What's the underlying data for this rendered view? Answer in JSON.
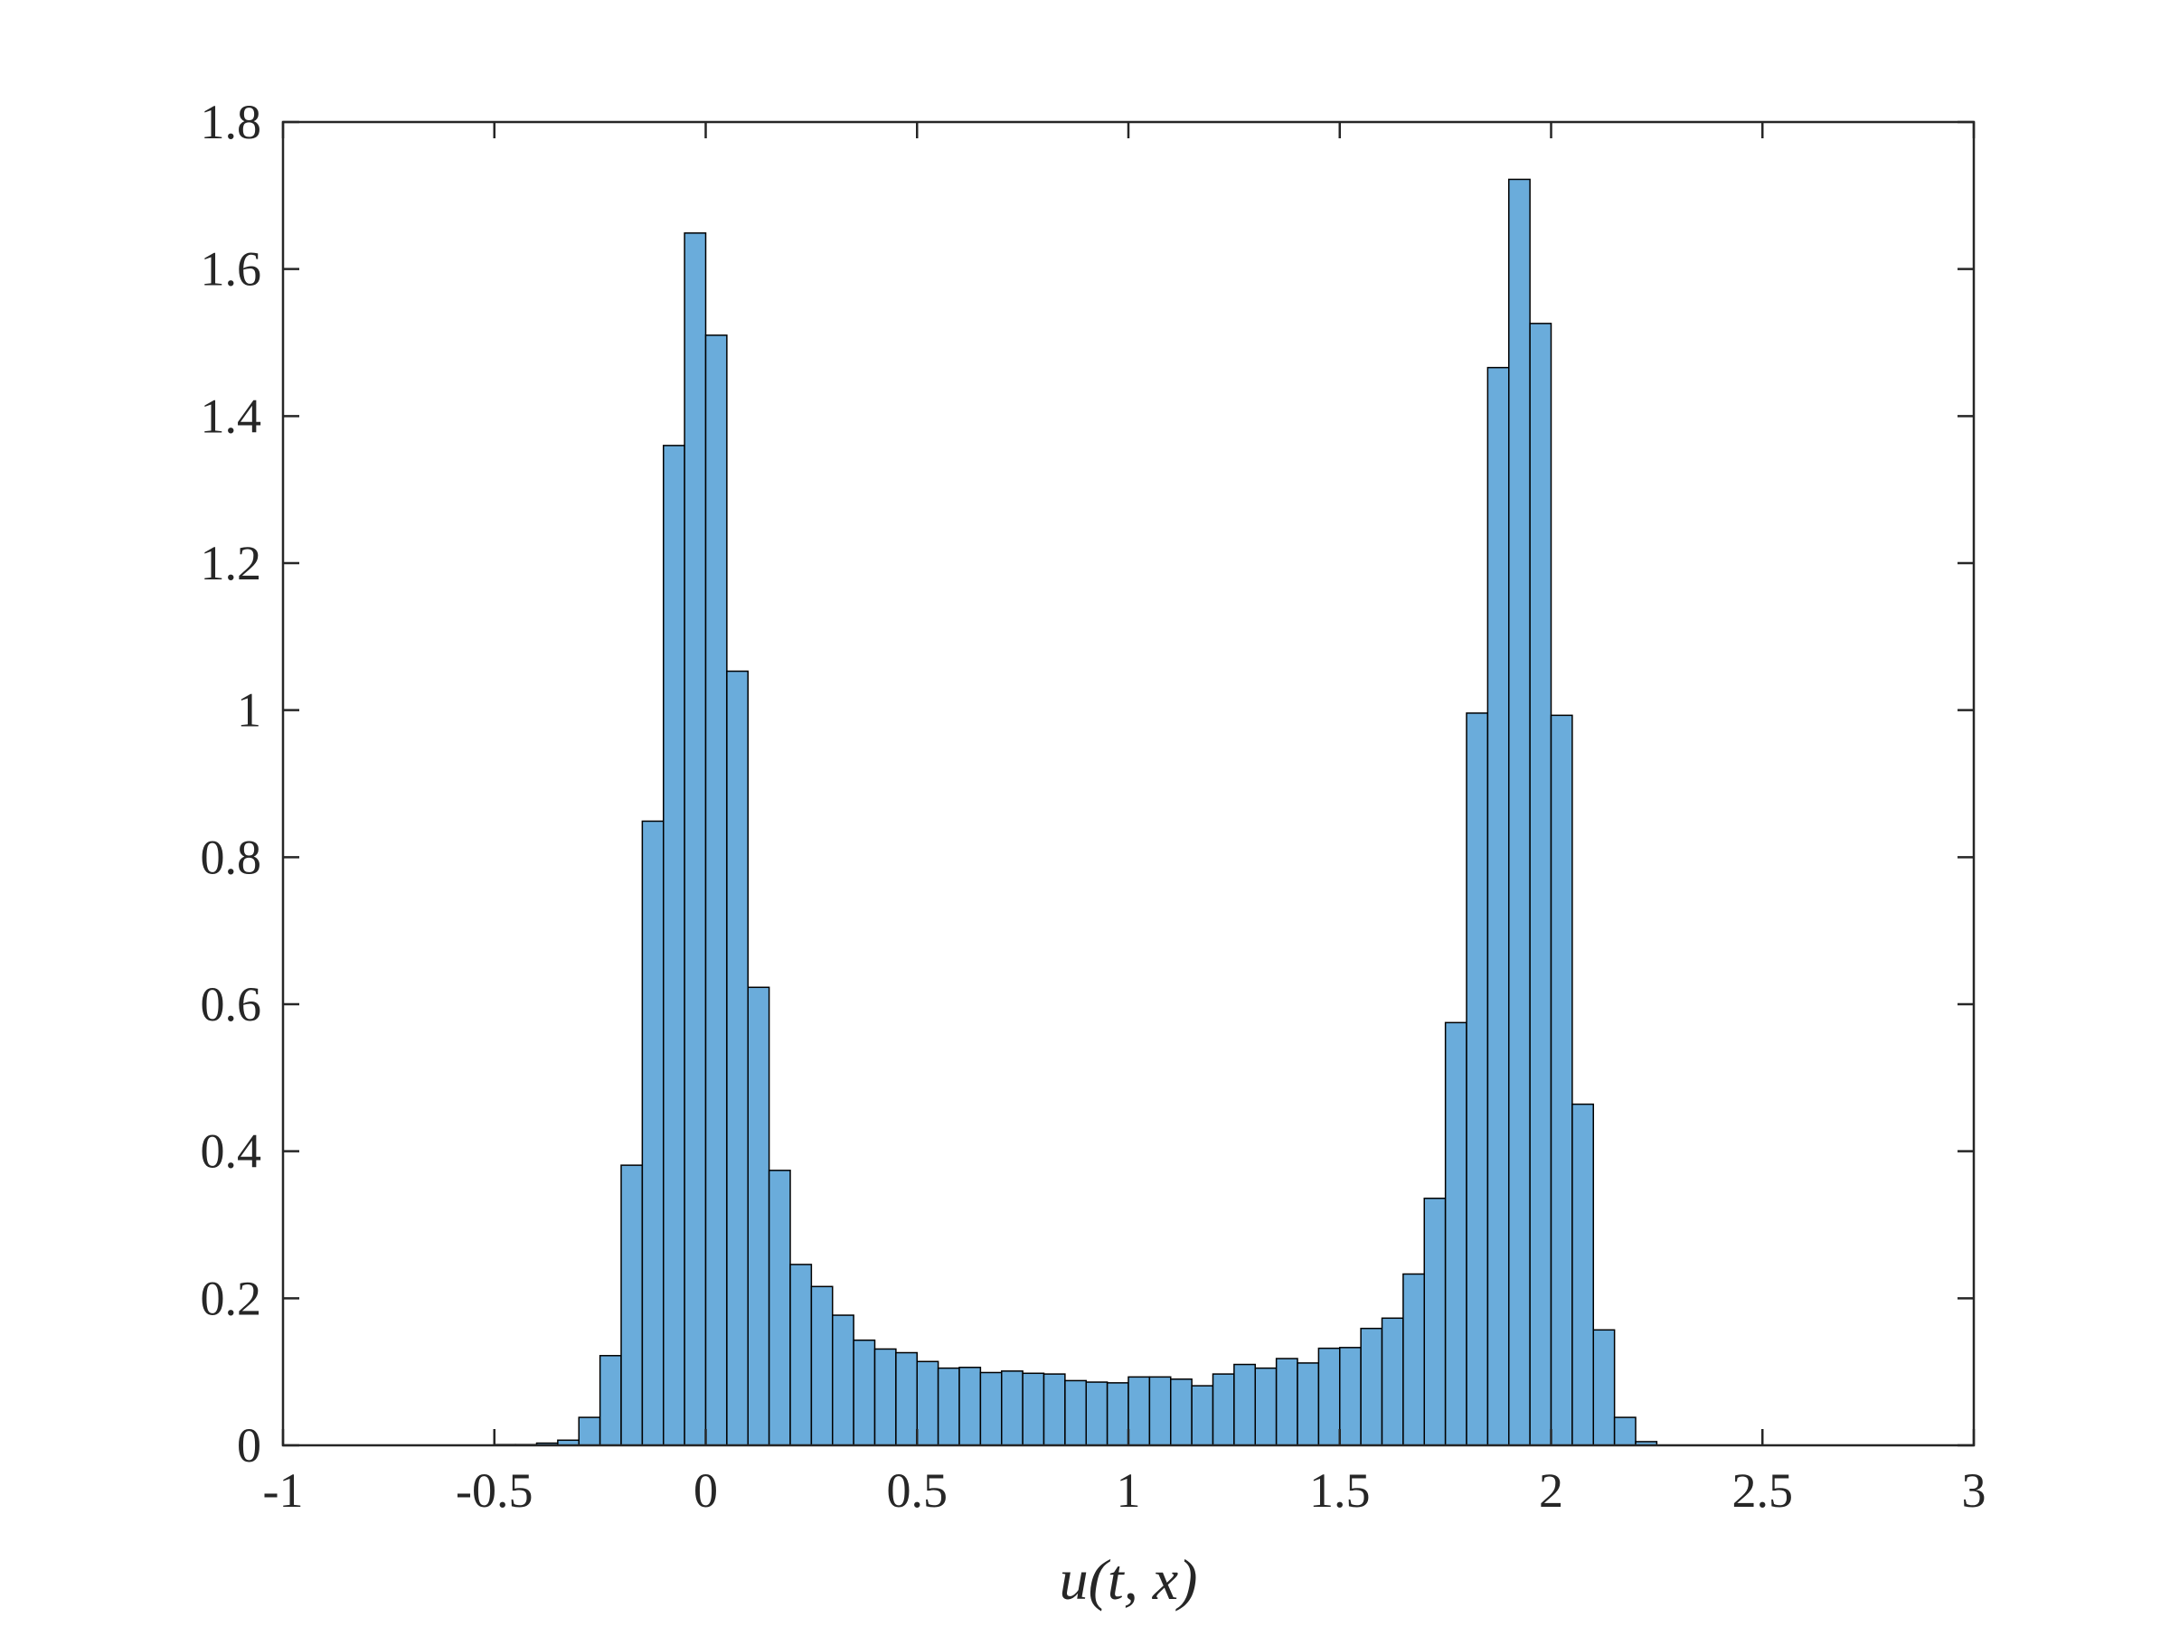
{
  "chart_data": {
    "type": "bar",
    "title": "",
    "xlabel": "u(t, x)",
    "ylabel": "",
    "xlim": [
      -1,
      3
    ],
    "ylim": [
      0,
      1.8
    ],
    "xticks": [
      -1,
      -0.5,
      0,
      0.5,
      1,
      1.5,
      2,
      2.5,
      3
    ],
    "xtick_labels": [
      "-1",
      "-0.5",
      "0",
      "0.5",
      "1",
      "1.5",
      "2",
      "2.5",
      "3"
    ],
    "yticks": [
      0,
      0.2,
      0.4,
      0.6,
      0.8,
      1,
      1.2,
      1.4,
      1.6,
      1.8
    ],
    "ytick_labels": [
      "0",
      "0.2",
      "0.4",
      "0.6",
      "0.8",
      "1",
      "1.2",
      "1.4",
      "1.6",
      "1.8"
    ],
    "grid": false,
    "legend": "none",
    "bar_color": "#6aacdb",
    "edge_color": "#000000",
    "bin_width": 0.05,
    "bin_edges_start": -0.5,
    "values": [
      0.001,
      0.001,
      0.003,
      0.007,
      0.038,
      0.122,
      0.381,
      0.849,
      1.36,
      1.649,
      1.51,
      1.053,
      0.623,
      0.374,
      0.246,
      0.216,
      0.177,
      0.143,
      0.131,
      0.126,
      0.114,
      0.105,
      0.106,
      0.099,
      0.101,
      0.098,
      0.097,
      0.088,
      0.086,
      0.085,
      0.093,
      0.093,
      0.09,
      0.081,
      0.097,
      0.11,
      0.105,
      0.118,
      0.112,
      0.132,
      0.133,
      0.159,
      0.173,
      0.233,
      0.336,
      0.575,
      0.996,
      1.466,
      1.722,
      1.526,
      0.993,
      0.464,
      0.157,
      0.038,
      0.005
    ]
  }
}
